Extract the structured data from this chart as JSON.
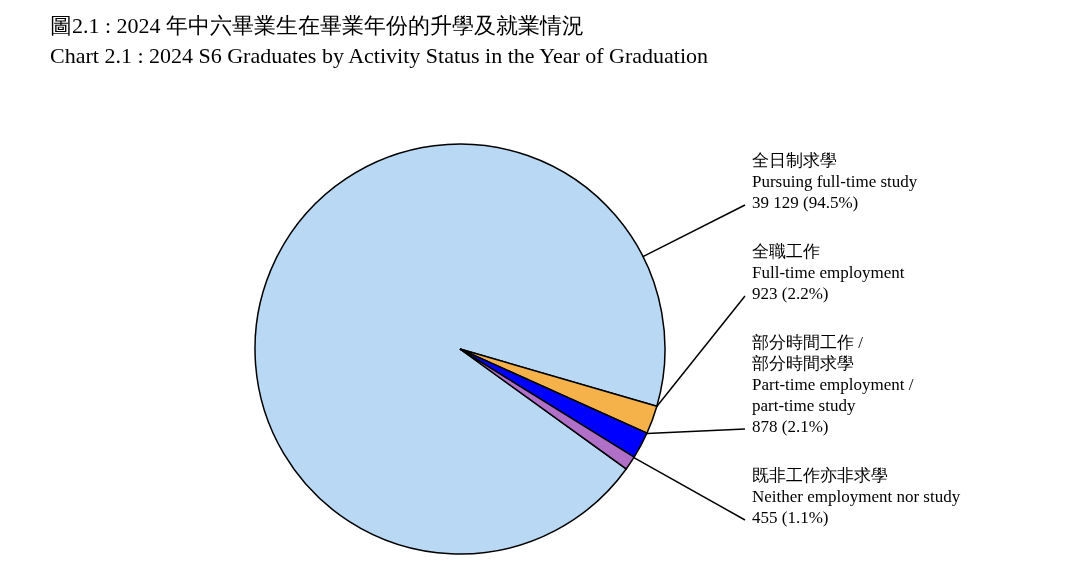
{
  "chart_data": {
    "type": "pie",
    "title": "圖2.1 :    2024 年中六畢業生在畢業年份的升學及就業情況",
    "subtitle": "Chart 2.1 :  2024 S6 Graduates by Activity Status in the Year of Graduation",
    "categories": [
      "全日制求學\nPursuing full-time study",
      "全職工作\nFull-time employment",
      "部分時間工作 /\n部分時間求學\nPart-time employment /\npart-time study",
      "既非工作亦非求學\nNeither employment nor study"
    ],
    "values": [
      39129,
      923,
      878,
      455
    ],
    "colors": [
      "#b8d8f4",
      "#f5b24a",
      "#0000ff",
      "#b070c8"
    ],
    "value_labels": [
      "39 129 (94.5%)",
      "923 (2.2%)",
      "878 (2.1%)",
      "455 (1.1%)"
    ]
  }
}
